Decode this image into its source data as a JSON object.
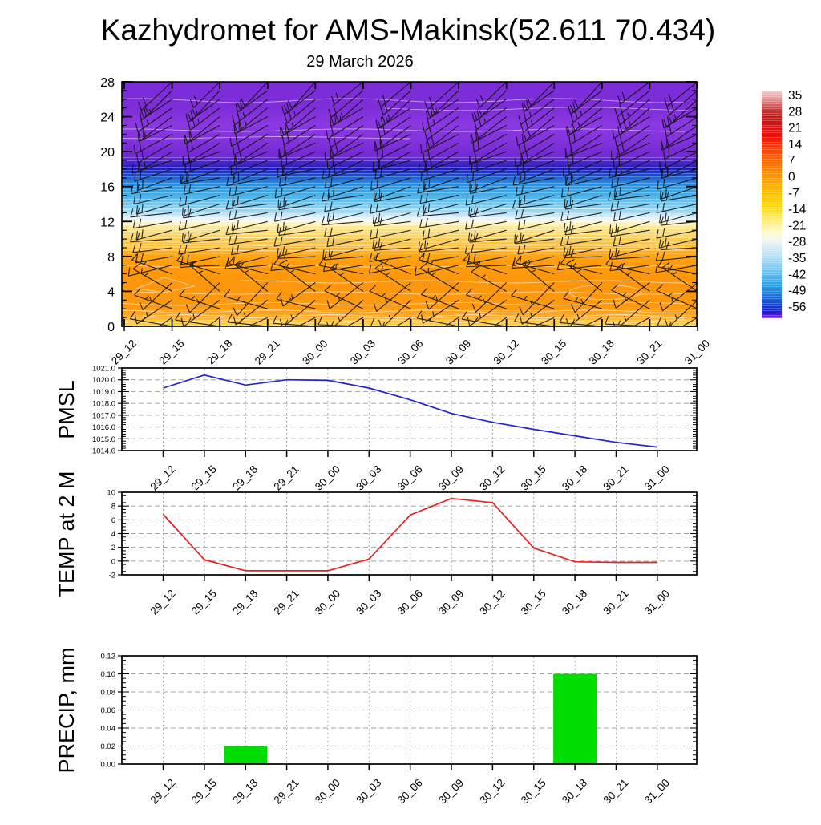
{
  "title": "Kazhydromet for AMS-Makinsk(52.611 70.434)",
  "subtitle": "29 March 2026",
  "time_labels": [
    "29_12",
    "29_15",
    "29_18",
    "29_21",
    "30_00",
    "30_03",
    "30_06",
    "30_09",
    "30_12",
    "30_15",
    "30_18",
    "30_21",
    "31_00"
  ],
  "chart_data": [
    {
      "type": "heatmap",
      "name": "vertical-cross-section",
      "x_categories": [
        "29_12",
        "29_15",
        "29_18",
        "29_21",
        "30_00",
        "30_03",
        "30_06",
        "30_09",
        "30_12",
        "30_15",
        "30_18",
        "30_21",
        "31_00"
      ],
      "ylim": [
        0,
        28
      ],
      "ytick_labels": [
        "0",
        "4",
        "8",
        "12",
        "16",
        "20",
        "24",
        "28"
      ],
      "legend_position": "right",
      "grid": false,
      "temperature_gradient_stops": [
        [
          0.0,
          "#7c2cd6"
        ],
        [
          0.11,
          "#7e2ed8"
        ],
        [
          0.179,
          "#8a38e2"
        ],
        [
          0.232,
          "#8434dc"
        ],
        [
          0.295,
          "#762ad4"
        ],
        [
          0.318,
          "#5a26d6"
        ],
        [
          0.339,
          "#3a20d2"
        ],
        [
          0.357,
          "#1c1cca"
        ],
        [
          0.371,
          "#1a36d2"
        ],
        [
          0.393,
          "#1e64dc"
        ],
        [
          0.411,
          "#2188e4"
        ],
        [
          0.446,
          "#2ea6ec"
        ],
        [
          0.482,
          "#55c0f2"
        ],
        [
          0.518,
          "#86d2f6"
        ],
        [
          0.543,
          "#b4e2fa"
        ],
        [
          0.557,
          "#dff0fb"
        ],
        [
          0.568,
          "#f6f8ec"
        ],
        [
          0.579,
          "#fff3b8"
        ],
        [
          0.604,
          "#ffe176"
        ],
        [
          0.636,
          "#ffd150"
        ],
        [
          0.668,
          "#ffbe30"
        ],
        [
          0.7,
          "#ffab18"
        ],
        [
          0.736,
          "#ff9d0e"
        ],
        [
          0.82,
          "#fc960c"
        ],
        [
          0.92,
          "#fd9a10"
        ],
        [
          0.957,
          "#ffa61e"
        ],
        [
          0.978,
          "#ffc136"
        ],
        [
          1.0,
          "#ffd448"
        ]
      ],
      "contour_color": "#ffffff",
      "contours": [
        {
          "l": 25.85,
          "a": 2.5,
          "p": 260,
          "ph": 0.5
        },
        {
          "l": 24.9,
          "a": 2.0,
          "p": 300,
          "ph": 2.1,
          "x0": 480
        },
        {
          "l": 22.45,
          "a": 1.6,
          "p": 280,
          "ph": 1.2
        },
        {
          "l": 21.6,
          "a": 1.2,
          "p": 320,
          "ph": 4.0,
          "x1": 520
        },
        {
          "l": 13.4,
          "a": 0.7,
          "p": 400,
          "ph": 0.0
        },
        {
          "l": 12.9,
          "a": 0.6,
          "p": 380,
          "ph": 1.0
        },
        {
          "l": 12.45,
          "a": 0.5,
          "p": 360,
          "ph": 2.0
        },
        {
          "l": 12.0,
          "a": 0.5,
          "p": 340,
          "ph": 3.0
        },
        {
          "l": 11.55,
          "a": 0.6,
          "p": 360,
          "ph": 1.5
        },
        {
          "l": 11.1,
          "a": 0.6,
          "p": 340,
          "ph": 2.5
        },
        {
          "l": 10.65,
          "a": 0.7,
          "p": 320,
          "ph": 0.7
        },
        {
          "l": 10.2,
          "a": 0.7,
          "p": 340,
          "ph": 1.8
        },
        {
          "l": 9.7,
          "a": 0.8,
          "p": 300,
          "ph": 2.6
        },
        {
          "l": 9.2,
          "a": 0.8,
          "p": 320,
          "ph": 3.4
        },
        {
          "l": 8.7,
          "a": 0.9,
          "p": 300,
          "ph": 0.3
        },
        {
          "l": 6.85,
          "a": 1.3,
          "p": 240,
          "ph": 1.1
        },
        {
          "l": 5.1,
          "a": 1.6,
          "p": 220,
          "ph": 2.2,
          "x0": 300
        },
        {
          "l": 3.8,
          "a": 1.5,
          "p": 260,
          "ph": 0.9
        },
        {
          "l": 2.55,
          "a": 1.7,
          "p": 230,
          "ph": 1.7
        },
        {
          "l": 1.7,
          "a": 1.9,
          "p": 200,
          "ph": 0.4
        },
        {
          "l": 1.15,
          "a": 2.1,
          "p": 180,
          "ph": 2.9
        },
        {
          "l": 0.6,
          "a": 1.8,
          "p": 190,
          "ph": 1.3
        }
      ],
      "wind_profile": [
        {
          "level": 0,
          "angle": 185,
          "ticks": 1
        },
        {
          "level": 1,
          "angle": 150,
          "ticks": 1
        },
        {
          "level": 2,
          "angle": 200,
          "ticks": 1
        },
        {
          "level": 3,
          "angle": 142,
          "ticks": 1
        },
        {
          "level": 4,
          "angle": 215,
          "ticks": 1
        },
        {
          "level": 5,
          "angle": 138,
          "ticks": 1
        },
        {
          "level": 6,
          "angle": 196,
          "ticks": 1
        },
        {
          "level": 7,
          "angle": 172,
          "ticks": 1
        },
        {
          "level": 8,
          "angle": 172,
          "ticks": 2
        },
        {
          "level": 9,
          "angle": 171,
          "ticks": 2
        },
        {
          "level": 10,
          "angle": 170,
          "ticks": 2
        },
        {
          "level": 11,
          "angle": 168,
          "ticks": 2
        },
        {
          "level": 12,
          "angle": 169,
          "ticks": 2
        },
        {
          "level": 13,
          "angle": 169,
          "ticks": 2
        },
        {
          "level": 14,
          "angle": 168,
          "ticks": 2
        },
        {
          "level": 15,
          "angle": 167,
          "ticks": 2
        },
        {
          "level": 16,
          "angle": 166,
          "ticks": 2
        },
        {
          "level": 17,
          "angle": 165,
          "ticks": 2
        },
        {
          "level": 18,
          "angle": 163,
          "ticks": 2
        },
        {
          "level": 19,
          "angle": 159,
          "ticks": 2
        },
        {
          "level": 20,
          "angle": 155,
          "ticks": 2
        },
        {
          "level": 21,
          "angle": 152,
          "ticks": 2
        },
        {
          "level": 22,
          "angle": 150,
          "ticks": 2
        },
        {
          "level": 23,
          "angle": 148,
          "ticks": 2
        },
        {
          "level": 24,
          "angle": 146,
          "ticks": 2
        },
        {
          "level": 25,
          "angle": 144,
          "ticks": 3
        },
        {
          "level": 26,
          "angle": 141,
          "ticks": 3
        },
        {
          "level": 27,
          "angle": 139,
          "ticks": 2
        },
        {
          "level": 28,
          "angle": 137,
          "ticks": 2
        }
      ],
      "colorbar": {
        "labels": [
          "35",
          "28",
          "21",
          "14",
          "7",
          "0",
          "-7",
          "-14",
          "-21",
          "-28",
          "-35",
          "-42",
          "-49",
          "-56"
        ],
        "stops": [
          [
            0.0,
            "#f6caca"
          ],
          [
            0.03,
            "#eba4a4"
          ],
          [
            0.06,
            "#d96666"
          ],
          [
            0.09,
            "#c43434"
          ],
          [
            0.12,
            "#bc1a1a"
          ],
          [
            0.16,
            "#d81212"
          ],
          [
            0.2,
            "#f80c00"
          ],
          [
            0.25,
            "#ff3a00"
          ],
          [
            0.3,
            "#ff6000"
          ],
          [
            0.35,
            "#ff8400"
          ],
          [
            0.4,
            "#ffa200"
          ],
          [
            0.45,
            "#ffbe00"
          ],
          [
            0.5,
            "#ffd400"
          ],
          [
            0.53,
            "#ffdf2e"
          ],
          [
            0.56,
            "#ffe966"
          ],
          [
            0.6,
            "#fff4a6"
          ],
          [
            0.63,
            "#fffbd6"
          ],
          [
            0.655,
            "#f4f6ee"
          ],
          [
            0.68,
            "#dcedf8"
          ],
          [
            0.72,
            "#bfe2f6"
          ],
          [
            0.76,
            "#97d2f2"
          ],
          [
            0.8,
            "#66c0ee"
          ],
          [
            0.84,
            "#38aae8"
          ],
          [
            0.87,
            "#2292e2"
          ],
          [
            0.9,
            "#1c72da"
          ],
          [
            0.93,
            "#1850d6"
          ],
          [
            0.955,
            "#122ed0"
          ],
          [
            0.97,
            "#1c1cd0"
          ],
          [
            0.985,
            "#4a1cd8"
          ],
          [
            1.0,
            "#8a2be2"
          ]
        ]
      }
    },
    {
      "type": "line",
      "ylabel": "PMSL",
      "x": [
        "29_12",
        "29_15",
        "29_18",
        "29_21",
        "30_00",
        "30_03",
        "30_06",
        "30_09",
        "30_12",
        "30_15",
        "30_18",
        "30_21",
        "31_00"
      ],
      "values": [
        1019.3,
        1020.4,
        1019.55,
        1020.0,
        1019.95,
        1019.3,
        1018.3,
        1017.15,
        1016.4,
        1015.8,
        1015.25,
        1014.7,
        1014.3
      ],
      "ylim": [
        1014.0,
        1021.0
      ],
      "ytick_labels": [
        "1021.0",
        "1020.0",
        "1019.0",
        "1018.0",
        "1017.0",
        "1016.0",
        "1015.0",
        "1014.0"
      ],
      "minor_tick_step": 0.2,
      "line_color": "#2424d0",
      "grid": true
    },
    {
      "type": "line",
      "ylabel": "TEMP at 2 M",
      "x": [
        "29_12",
        "29_15",
        "29_18",
        "29_21",
        "30_00",
        "30_03",
        "30_06",
        "30_09",
        "30_12",
        "30_15",
        "30_18",
        "30_21",
        "31_00"
      ],
      "values": [
        6.8,
        0.2,
        -1.4,
        -1.4,
        -1.4,
        0.3,
        6.7,
        9.1,
        8.5,
        1.9,
        -0.1,
        -0.2,
        -0.2
      ],
      "ylim": [
        -2,
        10
      ],
      "ytick_labels": [
        "10",
        "8",
        "6",
        "4",
        "2",
        "0",
        "-2"
      ],
      "minor_tick_step": 0.5,
      "line_color": "#e82020",
      "grid": true
    },
    {
      "type": "bar",
      "ylabel": "PRECIP, mm",
      "x": [
        "29_12",
        "29_15",
        "29_18",
        "29_21",
        "30_00",
        "30_03",
        "30_06",
        "30_09",
        "30_12",
        "30_15",
        "30_18",
        "30_21",
        "31_00"
      ],
      "values": [
        0,
        0,
        0.02,
        0,
        0,
        0,
        0,
        0,
        0,
        0,
        0.1,
        0,
        0
      ],
      "ylim": [
        0.0,
        0.12
      ],
      "ytick_labels": [
        "0.12",
        "0.10",
        "0.08",
        "0.06",
        "0.04",
        "0.02",
        "0.00"
      ],
      "minor_tick_step": 0.005,
      "bar_color": "#00dd00",
      "grid": true
    }
  ]
}
